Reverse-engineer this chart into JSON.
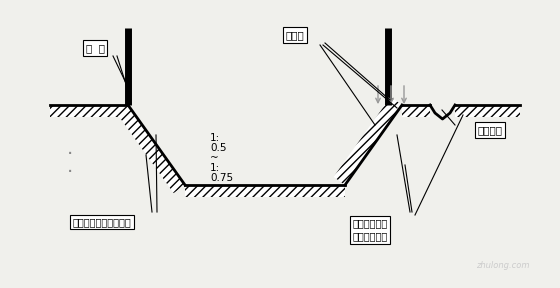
{
  "bg_color": "#f0f0ec",
  "line_color": "#000000",
  "gray_color": "#999999",
  "slope_label_lines": [
    "1:",
    "0.5",
    "~",
    "1:",
    "0.75"
  ],
  "label_hukan": "护  栏",
  "label_shehudao": "设护道",
  "label_shechuishui": "设截水沟",
  "label_guanchawall1": "观察坑壁边缘有无裂缝",
  "label_guanchawall2_1": "观察坑壁边缘",
  "label_guanchawall2_2": "有无松散崩落",
  "watermark": "zhulong.com"
}
